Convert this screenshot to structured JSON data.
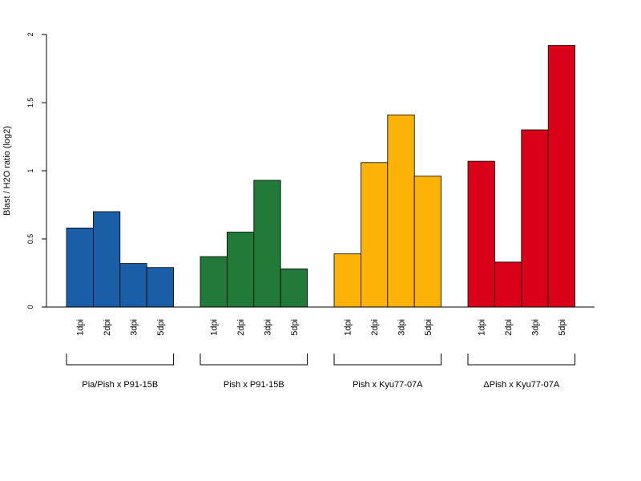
{
  "chart_data": {
    "type": "bar",
    "title": "",
    "ylabel": "Blast / H2O ratio (log2)",
    "xlabel": "",
    "ylim": [
      0,
      2
    ],
    "yticks": [
      "0",
      "0.5",
      "1",
      "1.5",
      "2"
    ],
    "grid": false,
    "legend": "none",
    "groups": [
      {
        "name": "Pia/Pish x P91-15B",
        "color": "#1B5EA8",
        "categories": [
          "1dpi",
          "2dpi",
          "3dpi",
          "5dpi"
        ],
        "values": [
          0.58,
          0.7,
          0.32,
          0.29
        ]
      },
      {
        "name": "Pish x P91-15B",
        "color": "#217A37",
        "categories": [
          "1dpi",
          "2dpi",
          "3dpi",
          "5dpi"
        ],
        "values": [
          0.37,
          0.55,
          0.93,
          0.28
        ]
      },
      {
        "name": "Pish x Kyu77-07A",
        "color": "#FDB208",
        "categories": [
          "1dpi",
          "2dpi",
          "3dpi",
          "5dpi"
        ],
        "values": [
          0.39,
          1.06,
          1.41,
          0.96
        ]
      },
      {
        "name": "ΔPish x Kyu77-07A",
        "color": "#DA0019",
        "categories": [
          "1dpi",
          "2dpi",
          "3dpi",
          "5dpi"
        ],
        "values": [
          1.07,
          0.33,
          1.3,
          1.92
        ]
      }
    ]
  }
}
